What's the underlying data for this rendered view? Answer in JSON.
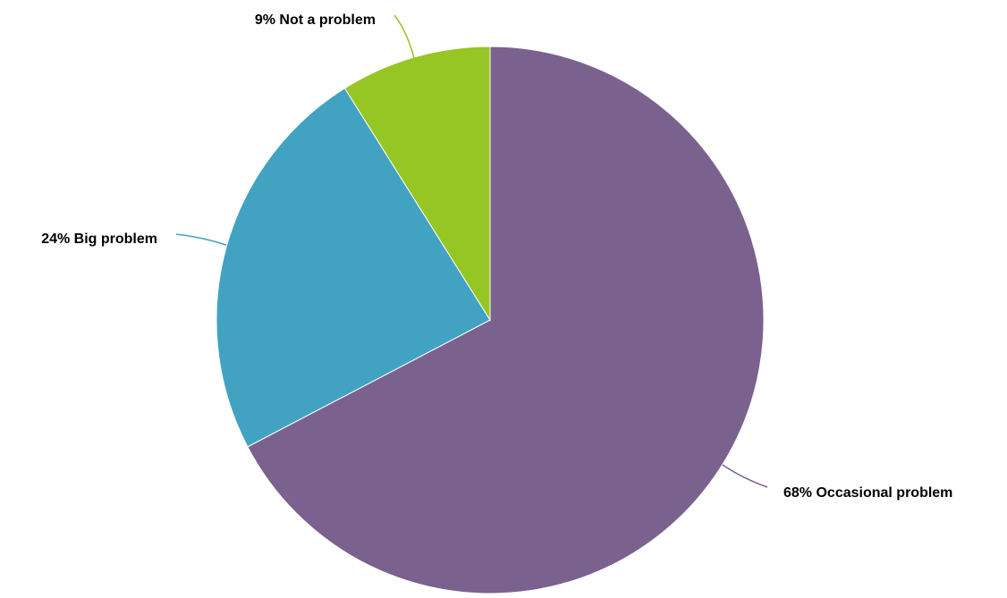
{
  "chart_data": {
    "type": "pie",
    "start_angle": "12 o'clock",
    "direction": "clockwise",
    "slices": [
      {
        "label": "68% Occasional problem",
        "category": "Occasional problem",
        "value": 68,
        "color": "#7b618e"
      },
      {
        "label": "24% Big problem",
        "category": "Big problem",
        "value": 24,
        "color": "#41a3c1"
      },
      {
        "label": "9% Not a problem",
        "category": "Not a problem",
        "value": 9,
        "color": "#95c623"
      }
    ]
  }
}
